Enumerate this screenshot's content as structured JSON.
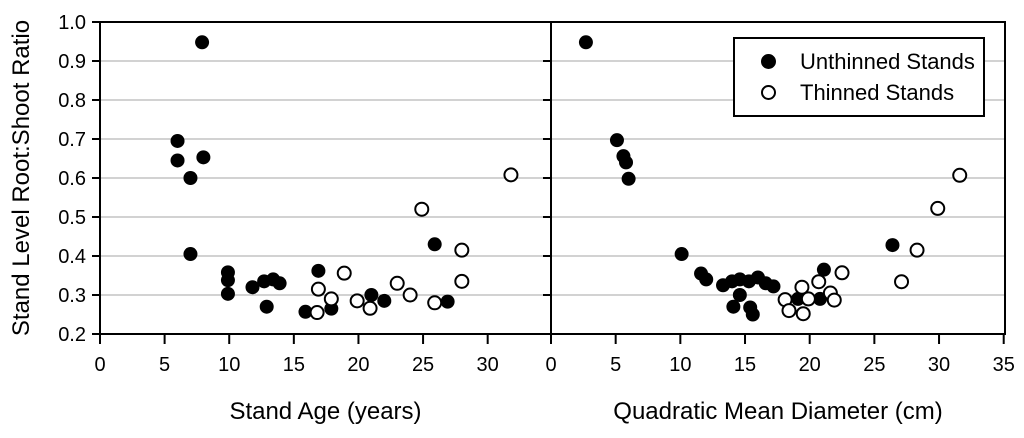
{
  "chart_data": {
    "type": "scatter",
    "title": "",
    "ylabel": "Stand Level Root:Shoot Ratio",
    "y_axis": {
      "min": 0.2,
      "max": 1.0,
      "tick_values": [
        0.2,
        0.3,
        0.4,
        0.5,
        0.6,
        0.7,
        0.8,
        0.9,
        1.0
      ],
      "tick_labels": [
        "0.2",
        "0.3",
        "0.4",
        "0.5",
        "0.6",
        "0.7",
        "0.8",
        "0.9",
        "1.0"
      ],
      "gridline_values": [
        0.3,
        0.4,
        0.5,
        0.6,
        0.7,
        0.8,
        0.9
      ],
      "grid": "horizontal-only"
    },
    "legend": {
      "position": "top-right-of-right-panel",
      "entries": [
        {
          "label": "Unthinned Stands",
          "marker": "filled-circle"
        },
        {
          "label": "Thinned Stands",
          "marker": "open-circle"
        }
      ]
    },
    "colors": {
      "point": "#000000",
      "gridline": "#a6a6a6",
      "axis": "#000000",
      "background": "#ffffff"
    },
    "panels": [
      {
        "xlabel": "Stand Age (years)",
        "x_axis": {
          "min": 0,
          "max": 34.9,
          "tick_values": [
            0,
            5,
            10,
            15,
            20,
            25,
            30
          ],
          "tick_labels": [
            "0",
            "5",
            "10",
            "15",
            "20",
            "25",
            "30"
          ]
        },
        "series": [
          {
            "name": "Unthinned Stands",
            "marker": "filled-circle",
            "points": [
              [
                7.9,
                0.948
              ],
              [
                6.0,
                0.695
              ],
              [
                6.0,
                0.645
              ],
              [
                8.0,
                0.653
              ],
              [
                7.0,
                0.6
              ],
              [
                7.0,
                0.405
              ],
              [
                9.9,
                0.358
              ],
              [
                9.9,
                0.338
              ],
              [
                9.9,
                0.303
              ],
              [
                11.8,
                0.32
              ],
              [
                12.7,
                0.335
              ],
              [
                13.4,
                0.34
              ],
              [
                13.9,
                0.33
              ],
              [
                12.9,
                0.27
              ],
              [
                15.9,
                0.257
              ],
              [
                16.9,
                0.362
              ],
              [
                17.9,
                0.265
              ],
              [
                21.0,
                0.3
              ],
              [
                22.0,
                0.285
              ],
              [
                25.9,
                0.43
              ],
              [
                26.9,
                0.283
              ]
            ]
          },
          {
            "name": "Thinned Stands",
            "marker": "open-circle",
            "points": [
              [
                16.8,
                0.255
              ],
              [
                16.9,
                0.315
              ],
              [
                17.9,
                0.29
              ],
              [
                18.9,
                0.356
              ],
              [
                19.9,
                0.285
              ],
              [
                20.9,
                0.266
              ],
              [
                23.0,
                0.33
              ],
              [
                24.0,
                0.3
              ],
              [
                24.9,
                0.52
              ],
              [
                25.9,
                0.28
              ],
              [
                28.0,
                0.415
              ],
              [
                28.0,
                0.335
              ],
              [
                31.8,
                0.608
              ]
            ]
          }
        ]
      },
      {
        "xlabel": "Quadratic Mean Diameter (cm)",
        "x_axis": {
          "min": 0,
          "max": 35.1,
          "tick_values": [
            0,
            5,
            10,
            15,
            20,
            25,
            30,
            35
          ],
          "tick_labels": [
            "0",
            "5",
            "10",
            "15",
            "20",
            "25",
            "30",
            "35"
          ]
        },
        "series": [
          {
            "name": "Unthinned Stands",
            "marker": "filled-circle",
            "points": [
              [
                2.7,
                0.948
              ],
              [
                5.1,
                0.697
              ],
              [
                5.6,
                0.656
              ],
              [
                5.8,
                0.64
              ],
              [
                6.0,
                0.598
              ],
              [
                10.1,
                0.405
              ],
              [
                11.6,
                0.355
              ],
              [
                12.0,
                0.34
              ],
              [
                13.3,
                0.325
              ],
              [
                14.0,
                0.335
              ],
              [
                14.6,
                0.34
              ],
              [
                15.3,
                0.335
              ],
              [
                16.0,
                0.345
              ],
              [
                16.6,
                0.33
              ],
              [
                17.2,
                0.322
              ],
              [
                14.1,
                0.27
              ],
              [
                14.6,
                0.3
              ],
              [
                15.4,
                0.268
              ],
              [
                15.6,
                0.25
              ],
              [
                19.1,
                0.29
              ],
              [
                20.8,
                0.29
              ],
              [
                21.1,
                0.365
              ],
              [
                26.4,
                0.428
              ]
            ]
          },
          {
            "name": "Thinned Stands",
            "marker": "open-circle",
            "points": [
              [
                18.1,
                0.288
              ],
              [
                18.4,
                0.26
              ],
              [
                19.4,
                0.32
              ],
              [
                19.5,
                0.252
              ],
              [
                19.9,
                0.29
              ],
              [
                20.7,
                0.334
              ],
              [
                21.6,
                0.305
              ],
              [
                21.9,
                0.287
              ],
              [
                22.5,
                0.357
              ],
              [
                27.1,
                0.334
              ],
              [
                28.3,
                0.415
              ],
              [
                29.9,
                0.522
              ],
              [
                31.6,
                0.607
              ]
            ]
          }
        ]
      }
    ]
  }
}
